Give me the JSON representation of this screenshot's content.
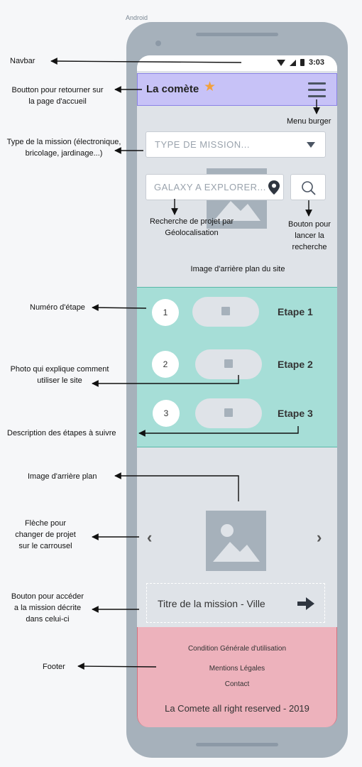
{
  "os_label": "Android",
  "status": {
    "time": "3:03"
  },
  "navbar": {
    "title": "La comète",
    "star_icon": "star-icon",
    "menu_icon": "hamburger-icon",
    "accent": "#c7c2f7"
  },
  "search": {
    "mission_type_placeholder": "TYPE DE MISSION...",
    "location_placeholder": "GALAXY A EXPLORER...",
    "location_icon": "map-pin-icon",
    "search_icon": "search-icon"
  },
  "steps": [
    {
      "number": "1",
      "label": "Etape 1"
    },
    {
      "number": "2",
      "label": "Etape 2"
    },
    {
      "number": "3",
      "label": "Etape 3"
    }
  ],
  "carousel": {
    "prev_icon": "chevron-left-icon",
    "next_icon": "chevron-right-icon",
    "mission_label": "Titre de la mission - Ville",
    "arrow_icon": "arrow-right-icon"
  },
  "footer": {
    "links": [
      "Condition Générale d'utilisation",
      "Mentions Légales",
      "Contact"
    ],
    "copyright": "La Comete all right reserved - 2019",
    "color": "#edb2bc"
  },
  "annotations": {
    "navbar": "Navbar",
    "home_button": [
      "Boutton pour retourner sur",
      "la page d'accueil"
    ],
    "menu_burger": "Menu burger",
    "mission_type": [
      "Type de la mission (électronique,",
      "bricolage, jardinage...)"
    ],
    "geo_search": [
      "Recherche de projet par",
      "Géolocalisation"
    ],
    "search_button": [
      "Bouton pour",
      "lancer la",
      "recherche"
    ],
    "background_site": "Image d'arrière plan du site",
    "step_number": "Numéro d'étape",
    "step_photo": [
      "Photo qui explique comment",
      "utiliser le site"
    ],
    "step_description": "Description des étapes à suivre",
    "background": "Image d'arrière plan",
    "carousel_arrow": [
      "Flèche pour",
      "changer de projet",
      "sur le carrousel"
    ],
    "mission_button": [
      "Bouton pour accéder",
      "a la mission décrite",
      "dans celui-ci"
    ],
    "footer": "Footer"
  }
}
